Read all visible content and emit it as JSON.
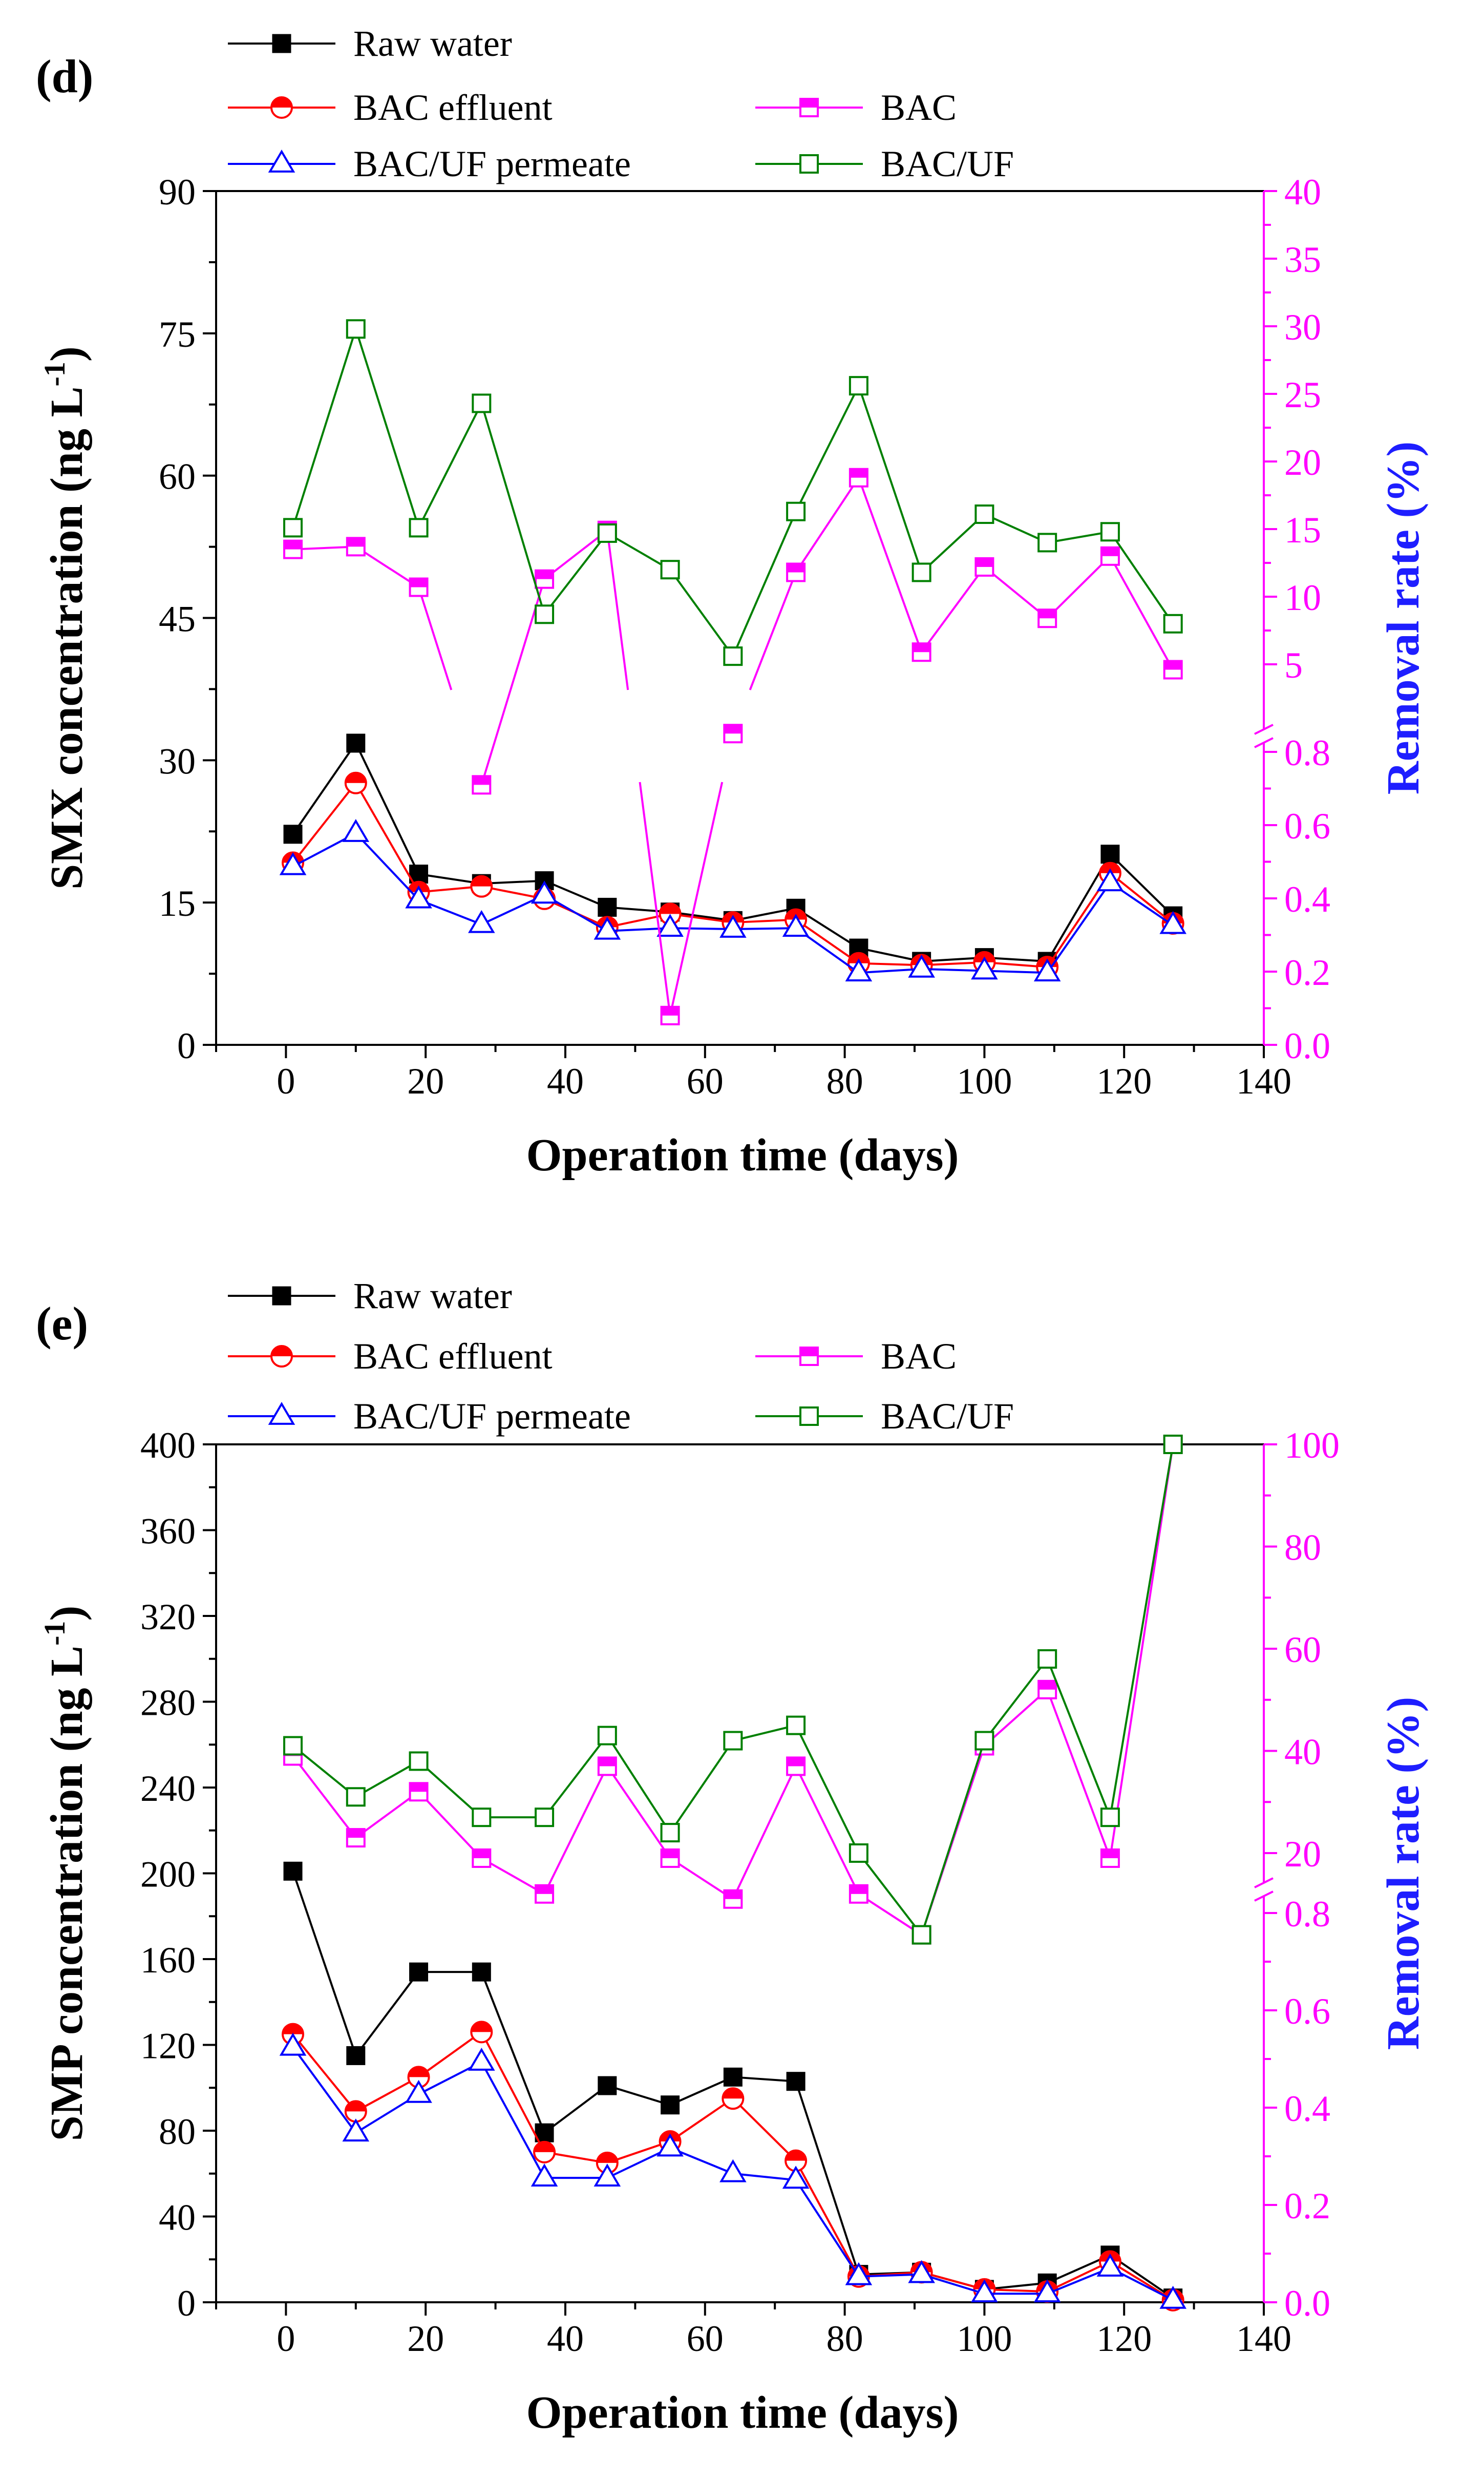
{
  "chart_data": [
    {
      "type": "line",
      "panel_label": "(d)",
      "xlabel": "Operation time (days)",
      "ylabel_prefix": "SMX concentration (ng L",
      "ylabel_sup": "-1",
      "ylabel_suffix": ")",
      "ylabel_right": "Removal rate (%)",
      "x_ticks": [
        0,
        20,
        40,
        60,
        80,
        100,
        120,
        140
      ],
      "xlim": [
        -10,
        140
      ],
      "y_ticks": [
        0,
        15,
        30,
        45,
        60,
        75,
        90
      ],
      "ylim": [
        0,
        90
      ],
      "right_lower_ticks": [
        "0.0",
        "0.2",
        "0.4",
        "0.6",
        "0.8"
      ],
      "right_upper_ticks": [
        5,
        10,
        15,
        20,
        25,
        30,
        35,
        40
      ],
      "x": [
        1,
        10,
        19,
        28,
        37,
        46,
        55,
        64,
        73,
        82,
        91,
        100,
        109,
        118,
        127
      ],
      "series": [
        {
          "name": "Raw water",
          "axis": "left",
          "color": "#000000",
          "marker": "square-filled",
          "values": [
            22.2,
            31.8,
            18.0,
            17.0,
            17.3,
            14.5,
            14.0,
            13.1,
            14.4,
            10.2,
            8.8,
            9.2,
            8.8,
            20.1,
            13.6
          ]
        },
        {
          "name": "BAC effluent",
          "axis": "left",
          "color": "#ff0000",
          "marker": "circle-half",
          "values": [
            19.2,
            27.6,
            16.1,
            16.7,
            15.4,
            12.4,
            13.8,
            12.9,
            13.2,
            8.6,
            8.4,
            8.7,
            8.2,
            18.1,
            12.8
          ]
        },
        {
          "name": "BAC/UF permeate",
          "axis": "left",
          "color": "#0000ff",
          "marker": "triangle-open",
          "values": [
            18.8,
            22.3,
            15.3,
            12.7,
            15.8,
            12.0,
            12.3,
            12.2,
            12.3,
            7.6,
            8.0,
            7.8,
            7.6,
            17.1,
            12.6
          ]
        },
        {
          "name": "BAC",
          "axis": "right",
          "color": "#ff00ff",
          "marker": "square-half",
          "values": [
            13.5,
            13.7,
            10.7,
            0.71,
            11.3,
            14.9,
            0.08,
            0.85,
            11.8,
            18.8,
            5.9,
            12.2,
            8.4,
            13.0,
            4.6
          ],
          "gap_segments": [
            [
              1,
              2
            ],
            [
              2,
              3
            ],
            [
              4,
              5
            ],
            [
              5,
              6
            ],
            [
              6,
              7
            ],
            [
              7,
              8
            ]
          ]
        },
        {
          "name": "BAC/UF",
          "axis": "right",
          "color": "#008000",
          "marker": "square-open",
          "values": [
            15.1,
            29.8,
            15.1,
            24.3,
            8.7,
            14.7,
            12.0,
            5.6,
            16.3,
            25.6,
            11.8,
            16.1,
            14.0,
            14.8,
            8.0
          ]
        }
      ]
    },
    {
      "type": "line",
      "panel_label": "(e)",
      "xlabel": "Operation time (days)",
      "ylabel_prefix": "SMP concentration (ng L",
      "ylabel_sup": "-1",
      "ylabel_suffix": ")",
      "ylabel_right": "Removal rate (%)",
      "x_ticks": [
        0,
        20,
        40,
        60,
        80,
        100,
        120,
        140
      ],
      "xlim": [
        -10,
        140
      ],
      "y_ticks": [
        0,
        40,
        80,
        120,
        160,
        200,
        240,
        280,
        320,
        360,
        400
      ],
      "ylim": [
        0,
        400
      ],
      "right_lower_ticks": [
        "0.0",
        "0.2",
        "0.4",
        "0.6",
        "0.8"
      ],
      "right_upper_ticks": [
        20,
        40,
        60,
        80,
        100
      ],
      "x": [
        1,
        10,
        19,
        28,
        37,
        46,
        55,
        64,
        73,
        82,
        91,
        100,
        109,
        118,
        127
      ],
      "series": [
        {
          "name": "Raw water",
          "axis": "left",
          "color": "#000000",
          "marker": "square-filled",
          "values": [
            201,
            115,
            154,
            154,
            79,
            101,
            92,
            105,
            103,
            13,
            14,
            6,
            9,
            22,
            2
          ]
        },
        {
          "name": "BAC effluent",
          "axis": "left",
          "color": "#ff0000",
          "marker": "circle-half",
          "values": [
            125,
            89,
            105,
            126,
            70,
            65,
            75,
            95,
            66,
            12,
            14,
            6,
            5,
            19,
            1
          ]
        },
        {
          "name": "BAC/UF permeate",
          "axis": "left",
          "color": "#0000ff",
          "marker": "triangle-open",
          "values": [
            119,
            79,
            97,
            112,
            58,
            58,
            72,
            60,
            57,
            12,
            13,
            4,
            4,
            16,
            1
          ]
        },
        {
          "name": "BAC",
          "axis": "right",
          "color": "#ff00ff",
          "marker": "square-half",
          "values": [
            39,
            23,
            32,
            19,
            12,
            37,
            19,
            11,
            37,
            12,
            4,
            41,
            52,
            19,
            100
          ]
        },
        {
          "name": "BAC/UF",
          "axis": "right",
          "color": "#008000",
          "marker": "square-open",
          "values": [
            41,
            31,
            38,
            27,
            27,
            43,
            24,
            42,
            45,
            20,
            4,
            42,
            58,
            27,
            100
          ]
        }
      ]
    }
  ]
}
